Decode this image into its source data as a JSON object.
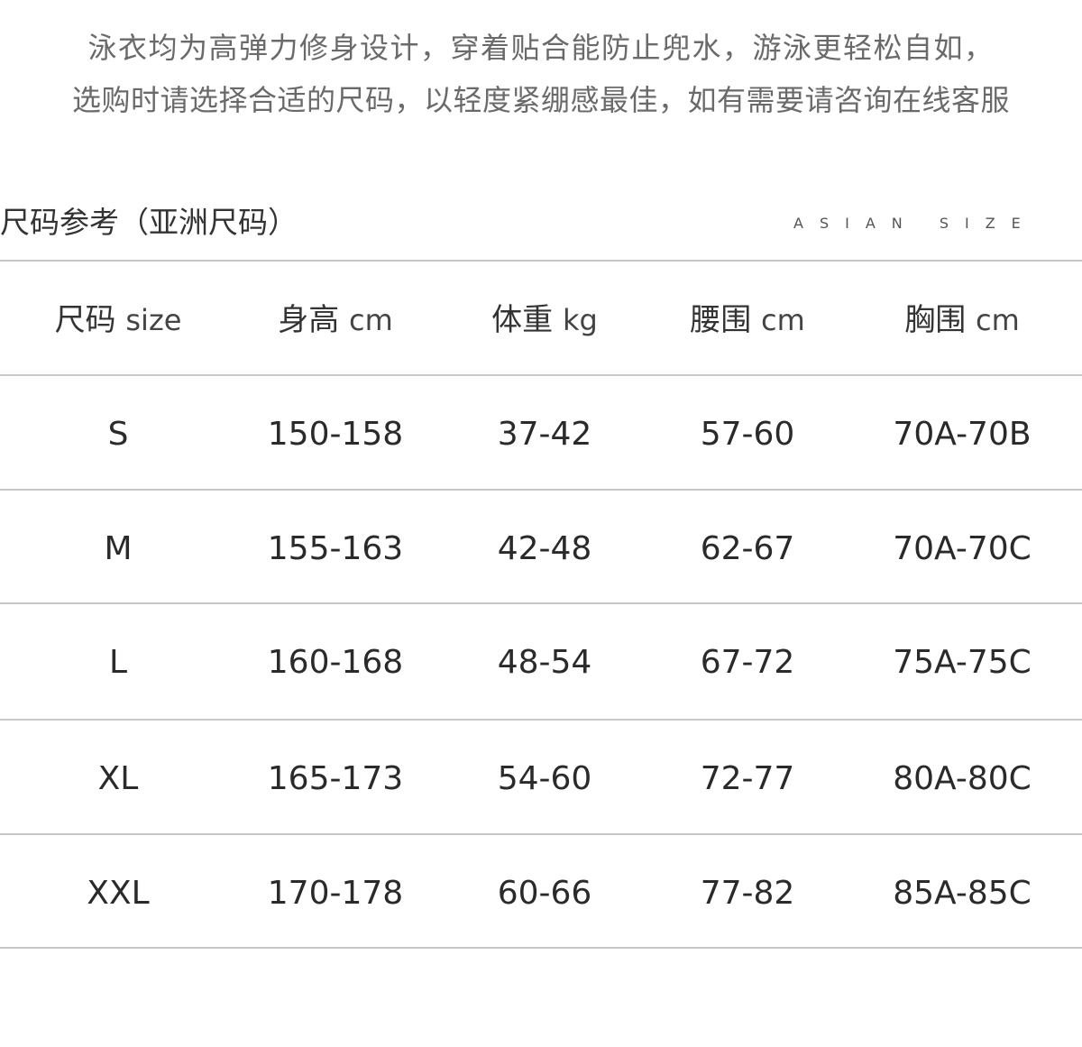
{
  "intro": {
    "line1": "泳衣均为高弹力修身设计，穿着贴合能防止兜水，游泳更轻松自如，",
    "line2": "选购时请选择合适的尺码，以轻度紧绷感最佳，如有需要请咨询在线客服"
  },
  "section": {
    "title": "尺码参考（亚洲尺码）",
    "subtitle": "ASIAN SIZE"
  },
  "table": {
    "headers": [
      {
        "label": "尺码",
        "unit": "size"
      },
      {
        "label": "身高",
        "unit": "cm"
      },
      {
        "label": "体重",
        "unit": "kg"
      },
      {
        "label": "腰围",
        "unit": "cm"
      },
      {
        "label": "胸围",
        "unit": "cm"
      }
    ],
    "rows": [
      [
        "S",
        "150-158",
        "37-42",
        "57-60",
        "70A-70B"
      ],
      [
        "M",
        "155-163",
        "42-48",
        "62-67",
        "70A-70C"
      ],
      [
        "L",
        "160-168",
        "48-54",
        "67-72",
        "75A-75C"
      ],
      [
        "XL",
        "165-173",
        "54-60",
        "72-77",
        "80A-80C"
      ],
      [
        "XXL",
        "170-178",
        "60-66",
        "77-82",
        "85A-85C"
      ]
    ]
  }
}
